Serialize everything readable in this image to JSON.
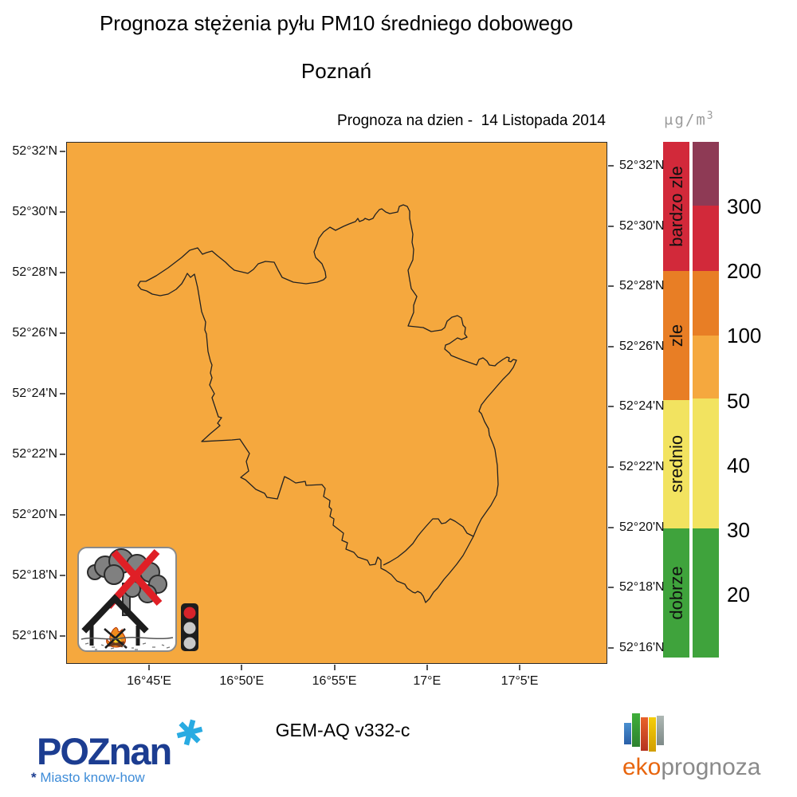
{
  "title": "Prognoza stężenia pyłu PM10 średniego dobowego",
  "subtitle": "Poznań",
  "forecast_date_line": "Prognoza na dzien -  14 Listopada 2014",
  "model_version": "GEM-AQ v332-c",
  "map": {
    "region_name": "Poznan city boundary",
    "fill_color": "#F5A83E",
    "boundary_color": "#222222",
    "lat_labels_left": [
      "52°32'N",
      "52°30'N",
      "52°28'N",
      "52°26'N",
      "52°24'N",
      "52°22'N",
      "52°20'N",
      "52°18'N",
      "52°16'N"
    ],
    "lat_labels_right": [
      "52°32'N",
      "52°30'N",
      "52°28'N",
      "52°26'N",
      "52°24'N",
      "52°22'N",
      "52°20'N",
      "52°18'N",
      "52°16'N"
    ],
    "lon_labels": [
      "16°45'E",
      "16°50'E",
      "16°55'E",
      "17°E",
      "17°5'E"
    ]
  },
  "legend": {
    "unit": "μg/m",
    "unit_exponent": "3",
    "categories": [
      {
        "label": "bardzo zle",
        "color": "#D2293A"
      },
      {
        "label": "zle",
        "color": "#E87E25"
      },
      {
        "label": "srednio",
        "color": "#F2E360"
      },
      {
        "label": "dobrze",
        "color": "#3FA33C"
      }
    ],
    "scale": {
      "tick_labels": [
        "300",
        "200",
        "100",
        "50",
        "40",
        "30",
        "20"
      ],
      "segment_colors": [
        "#8E3A55",
        "#D2293A",
        "#E87E25",
        "#F5A83E",
        "#F2E360",
        "#3FA33C"
      ],
      "segment_stops_frac": [
        0,
        0.124,
        0.25,
        0.376,
        0.498,
        0.75,
        1.0
      ]
    }
  },
  "warning_icon": {
    "description": "no-solid-fuel-burning warning",
    "traffic_light": {
      "active": "red",
      "lights": [
        "red",
        "off",
        "off"
      ]
    }
  },
  "logos": {
    "poznan": {
      "text": "POZnan",
      "tagline_star": "*",
      "tagline": " Miasto know-how"
    },
    "eko": {
      "eko": "eko",
      "prognoza": "prognoza"
    }
  }
}
